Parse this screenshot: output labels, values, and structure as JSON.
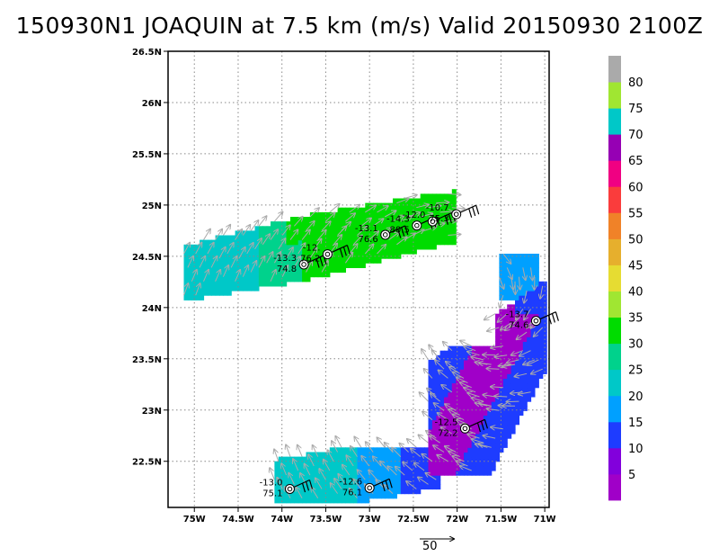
{
  "title": "150930N1 JOAQUIN at 7.5 km (m/s) Valid 20150930 2100Z",
  "chart_data": {
    "type": "heatmap",
    "title": "150930N1 JOAQUIN at 7.5 km (m/s) Valid 20150930 2100Z",
    "x_range": [
      -75.3,
      -70.95
    ],
    "y_range": [
      22.05,
      26.5
    ],
    "x_ticks": [
      {
        "value": -75.0,
        "label": "75W"
      },
      {
        "value": -74.5,
        "label": "74.5W"
      },
      {
        "value": -74.0,
        "label": "74W"
      },
      {
        "value": -73.5,
        "label": "73.5W"
      },
      {
        "value": -73.0,
        "label": "73W"
      },
      {
        "value": -72.5,
        "label": "72.5W"
      },
      {
        "value": -72.0,
        "label": "72W"
      },
      {
        "value": -71.5,
        "label": "71.5W"
      },
      {
        "value": -71.0,
        "label": "71W"
      }
    ],
    "y_ticks": [
      {
        "value": 22.5,
        "label": "22.5N"
      },
      {
        "value": 23.0,
        "label": "23N"
      },
      {
        "value": 23.5,
        "label": "23.5N"
      },
      {
        "value": 24.0,
        "label": "24N"
      },
      {
        "value": 24.5,
        "label": "24.5N"
      },
      {
        "value": 25.0,
        "label": "25N"
      },
      {
        "value": 25.5,
        "label": "25.5N"
      },
      {
        "value": 26.0,
        "label": "26N"
      },
      {
        "value": 26.5,
        "label": "26.5N"
      }
    ],
    "grid": true,
    "colorbar": {
      "labels": [
        "5",
        "10",
        "15",
        "20",
        "25",
        "30",
        "35",
        "40",
        "45",
        "50",
        "55",
        "60",
        "65",
        "70",
        "75",
        "80"
      ],
      "colors": [
        "#a000c8",
        "#8200dc",
        "#1e3cff",
        "#00a0ff",
        "#00c8c8",
        "#00d28c",
        "#00dc00",
        "#a0e632",
        "#e6dc32",
        "#e6af2d",
        "#f08228",
        "#fa3c3c",
        "#f00082",
        "#9600b4",
        "#00c8c8",
        "#a0e632",
        "#aaaaaa"
      ]
    },
    "stations": [
      {
        "lon": -73.75,
        "lat": 24.42,
        "top": "-13.3",
        "bottom": "74.8"
      },
      {
        "lon": -73.48,
        "lat": 24.52,
        "top": "-12.",
        "bottom": "76.2"
      },
      {
        "lon": -72.82,
        "lat": 24.71,
        "top": "-13.1",
        "bottom": "76.6"
      },
      {
        "lon": -72.46,
        "lat": 24.8,
        "top": "-14.3",
        "bottom": "80.5"
      },
      {
        "lon": -72.28,
        "lat": 24.84,
        "top": "-12.0",
        "bottom": ""
      },
      {
        "lon": -72.01,
        "lat": 24.91,
        "top": "-10.7",
        "bottom": "75.3"
      },
      {
        "lon": -71.1,
        "lat": 23.87,
        "top": "-13.7",
        "bottom": "74.6"
      },
      {
        "lon": -71.91,
        "lat": 22.82,
        "top": "-12.5",
        "bottom": "72.2"
      },
      {
        "lon": -73.0,
        "lat": 22.24,
        "top": "-12.6",
        "bottom": "76.1"
      },
      {
        "lon": -73.91,
        "lat": 22.23,
        "top": "-13.0",
        "bottom": "75.1"
      }
    ],
    "vector_scale_label": "50"
  }
}
